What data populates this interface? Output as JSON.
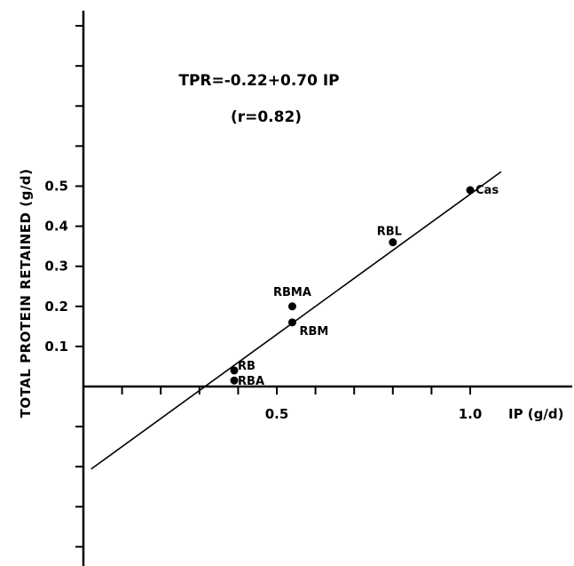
{
  "chart_data": {
    "type": "scatter",
    "title": "",
    "xlabel": "IP (g/d)",
    "ylabel": "TOTAL PROTEIN RETAINED (g/d)",
    "equation": "TPR=-0.22+0.70 IP",
    "correlation": "(r=0.82)",
    "xlim": [
      0,
      1.1
    ],
    "ylim": [
      -0.4,
      0.95
    ],
    "x_tick_labels": [
      {
        "value": 0.5,
        "label": "0.5"
      },
      {
        "value": 1.0,
        "label": "1.0"
      }
    ],
    "y_tick_labels": [
      {
        "value": 0.1,
        "label": "0.1"
      },
      {
        "value": 0.2,
        "label": "0.2"
      },
      {
        "value": 0.3,
        "label": "0.3"
      },
      {
        "value": 0.4,
        "label": "0.4"
      },
      {
        "value": 0.5,
        "label": "0.5"
      }
    ],
    "x_ticks": [
      0.1,
      0.2,
      0.3,
      0.4,
      0.5,
      0.6,
      0.7,
      0.8,
      0.9,
      1.0
    ],
    "y_ticks": [
      -0.4,
      -0.3,
      -0.2,
      -0.1,
      0.1,
      0.2,
      0.3,
      0.4,
      0.5,
      0.6,
      0.7,
      0.8,
      0.9
    ],
    "points": [
      {
        "label": "Cas",
        "x": 1.0,
        "y": 0.49
      },
      {
        "label": "RBL",
        "x": 0.8,
        "y": 0.36
      },
      {
        "label": "RBMA",
        "x": 0.54,
        "y": 0.2
      },
      {
        "label": "RBM",
        "x": 0.54,
        "y": 0.16
      },
      {
        "label": "RB",
        "x": 0.39,
        "y": 0.04
      },
      {
        "label": "RBA",
        "x": 0.39,
        "y": 0.015
      }
    ],
    "regression": {
      "intercept": -0.22,
      "slope": 0.7,
      "x_range": [
        0.02,
        1.08
      ]
    },
    "grid": false,
    "legend": "none"
  }
}
